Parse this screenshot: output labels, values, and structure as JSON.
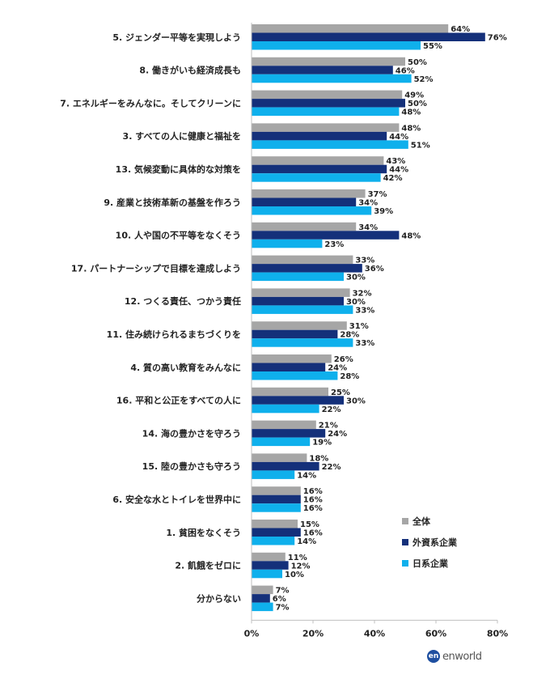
{
  "chart_data": {
    "type": "bar",
    "orientation": "horizontal",
    "categories": [
      "5. ジェンダー平等を実現しよう",
      "8. 働きがいも経済成長も",
      "7. エネルギーをみんなに。そしてクリーンに",
      "3. すべての人に健康と福祉を",
      "13. 気候変動に具体的な対策を",
      "9. 産業と技術革新の基盤を作ろう",
      "10. 人や国の不平等をなくそう",
      "17. パートナーシップで目標を達成しよう",
      "12. つくる責任、つかう責任",
      "11. 住み続けられるまちづくりを",
      "4. 質の高い教育をみんなに",
      "16. 平和と公正をすべての人に",
      "14. 海の豊かさを守ろう",
      "15. 陸の豊かさも守ろう",
      "6. 安全な水とトイレを世界中に",
      "1. 貧困をなくそう",
      "2. 飢餓をゼロに",
      "分からない"
    ],
    "series": [
      {
        "name": "全体",
        "color": "#a6a6a6",
        "values": [
          64,
          50,
          49,
          48,
          43,
          37,
          34,
          33,
          32,
          31,
          26,
          25,
          21,
          18,
          16,
          15,
          11,
          7
        ]
      },
      {
        "name": "外資系企業",
        "color": "#14307a",
        "values": [
          76,
          46,
          50,
          44,
          44,
          34,
          48,
          36,
          30,
          28,
          24,
          30,
          24,
          22,
          16,
          16,
          12,
          6
        ]
      },
      {
        "name": "日系企業",
        "color": "#0fb0ec",
        "values": [
          55,
          52,
          48,
          51,
          42,
          39,
          23,
          30,
          33,
          33,
          28,
          22,
          19,
          14,
          16,
          14,
          10,
          7
        ]
      }
    ],
    "value_suffix": "%",
    "xlim": [
      0,
      80
    ],
    "x_ticks": [
      "0%",
      "20%",
      "40%",
      "60%",
      "80%"
    ],
    "legend_position": "lower-right",
    "grid": false
  },
  "branding": {
    "logo_mark": "en",
    "logo_text": "enworld"
  }
}
